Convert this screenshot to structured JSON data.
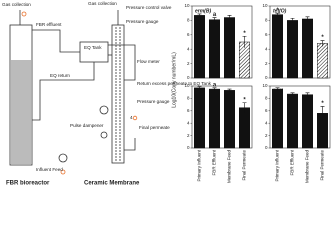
{
  "diagram": {
    "gas_collection_left": "Gas collection",
    "gas_collection_right": "Gas collection",
    "pressure_valve": "Pressure control valve",
    "pressure_gauge_top": "Pressure gauge",
    "fbr_effluent": "FBR effluent",
    "eq_tank": "EQ Tank",
    "eq_return": "EQ return",
    "flow_meter": "Flow meter",
    "return_excess": "Return excess permeate to EQ Tank",
    "pressure_gauge_bottom": "Pressure gauge",
    "step": "4",
    "final_permeate": "Final permeate",
    "pulse_dampener": "Pulse dampener",
    "influent_feed": "Influent Feed",
    "fbr_label": "FBR bioreactor",
    "membrane_label": "Ceramic Membrane"
  },
  "y_label": "Log10(Copy number/mL)",
  "chart_data": [
    {
      "type": "bar",
      "title": "erm(B)",
      "values": [
        8.7,
        8.1,
        8.4,
        5.0
      ],
      "errors": [
        0.2,
        0.3,
        0.3,
        0.8
      ],
      "hatched": [
        false,
        false,
        false,
        true
      ],
      "annotations": [
        {
          "index": 1,
          "text": "a"
        },
        {
          "index": 3,
          "text": "*"
        }
      ],
      "color": "#111111",
      "ylim": [
        0,
        10
      ],
      "yticks": [
        0,
        2,
        4,
        6,
        8,
        10
      ]
    },
    {
      "type": "bar",
      "title": "tet(O)",
      "values": [
        8.8,
        8.0,
        8.2,
        4.8
      ],
      "errors": [
        0.2,
        0.3,
        0.3,
        0.4
      ],
      "hatched": [
        false,
        false,
        false,
        true
      ],
      "annotations": [
        {
          "index": 0,
          "text": "*"
        },
        {
          "index": 3,
          "text": "*"
        }
      ],
      "color": "#111111",
      "ylim": [
        0,
        10
      ],
      "yticks": [
        0,
        2,
        4,
        6,
        8,
        10
      ]
    },
    {
      "type": "bar",
      "title": "sul1",
      "categories": [
        "Primary Influent",
        "FBR Effluent",
        "Membrane Feed",
        "Final Permeate"
      ],
      "values": [
        9.7,
        9.5,
        9.3,
        6.5
      ],
      "errors": [
        0.2,
        0.2,
        0.2,
        0.8
      ],
      "hatched": [
        false,
        false,
        false,
        false
      ],
      "annotations": [
        {
          "index": 1,
          "text": "a"
        },
        {
          "index": 3,
          "text": "*"
        }
      ],
      "color": "#111111",
      "ylim": [
        0,
        10
      ],
      "yticks": [
        0,
        2,
        4,
        6,
        8,
        10
      ]
    },
    {
      "type": "bar",
      "title": "intI1",
      "categories": [
        "Primary Influent",
        "FBR Effluent",
        "Membrane Feed",
        "Final Permeate"
      ],
      "values": [
        9.5,
        8.7,
        8.6,
        5.6
      ],
      "errors": [
        0.2,
        0.2,
        0.3,
        1.1
      ],
      "hatched": [
        false,
        false,
        false,
        false
      ],
      "annotations": [
        {
          "index": 3,
          "text": "*"
        }
      ],
      "color": "#111111",
      "ylim": [
        0,
        10
      ],
      "yticks": [
        0,
        2,
        4,
        6,
        8,
        10
      ]
    }
  ]
}
